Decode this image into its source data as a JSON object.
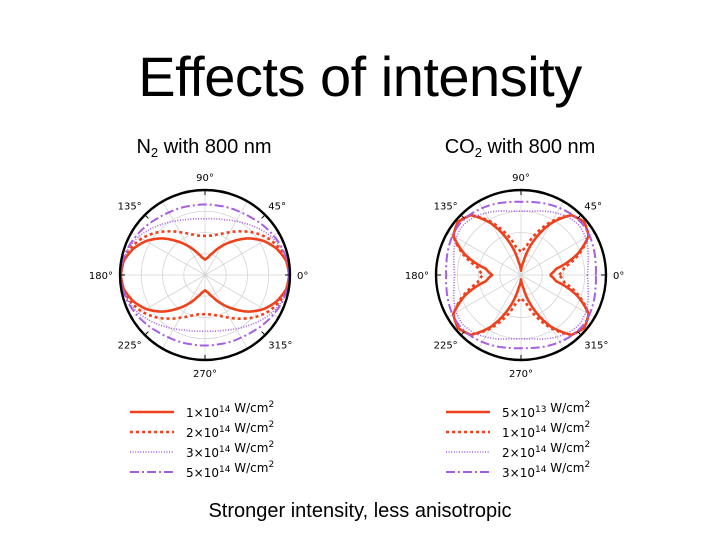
{
  "slide": {
    "title": "Effects of intensity",
    "footer": "Stronger intensity, less anisotropic"
  },
  "chart_data": [
    {
      "type": "polar-line",
      "title": {
        "prefix": "N",
        "subscript": "2",
        "suffix": " with 800 nm"
      },
      "angle_labels": [
        "0°",
        "45°",
        "90°",
        "135°",
        "180°",
        "225°",
        "270°",
        "315°"
      ],
      "angle_values_deg": [
        0,
        45,
        90,
        135,
        180,
        225,
        270,
        315
      ],
      "r_max": 1.0,
      "grid": true,
      "legend_position": "bottom",
      "series": [
        {
          "name": "1×10^14 W/cm^2",
          "label_base": "1×10",
          "label_exp": "14",
          "label_unit": " W/cm",
          "label_unit_exp": "2",
          "style": "solid",
          "color": "#f0411d",
          "theta_deg": [
            0,
            10,
            20,
            30,
            40,
            50,
            60,
            70,
            80,
            90
          ],
          "r": [
            0.99,
            0.97,
            0.9,
            0.8,
            0.67,
            0.52,
            0.39,
            0.28,
            0.21,
            0.18
          ]
        },
        {
          "name": "2×10^14 W/cm^2",
          "label_base": "2×10",
          "label_exp": "14",
          "label_unit": " W/cm",
          "label_unit_exp": "2",
          "style": "dotted",
          "color": "#f0411d",
          "theta_deg": [
            0,
            10,
            20,
            30,
            40,
            50,
            60,
            70,
            80,
            90
          ],
          "r": [
            0.99,
            0.98,
            0.93,
            0.86,
            0.77,
            0.67,
            0.58,
            0.51,
            0.47,
            0.46
          ]
        },
        {
          "name": "3×10^14 W/cm^2",
          "label_base": "3×10",
          "label_exp": "14",
          "label_unit": " W/cm",
          "label_unit_exp": "2",
          "style": "fine-dotted",
          "color": "#a65ee3",
          "theta_deg": [
            0,
            10,
            20,
            30,
            40,
            50,
            60,
            70,
            80,
            90
          ],
          "r": [
            0.99,
            0.98,
            0.95,
            0.9,
            0.84,
            0.78,
            0.73,
            0.69,
            0.67,
            0.66
          ]
        },
        {
          "name": "5×10^14 W/cm^2",
          "label_base": "5×10",
          "label_exp": "14",
          "label_unit": " W/cm",
          "label_unit_exp": "2",
          "style": "dash-dot",
          "color": "#a65ee3",
          "theta_deg": [
            0,
            10,
            20,
            30,
            40,
            50,
            60,
            70,
            80,
            90
          ],
          "r": [
            0.99,
            0.98,
            0.96,
            0.93,
            0.9,
            0.87,
            0.85,
            0.84,
            0.83,
            0.83
          ]
        }
      ]
    },
    {
      "type": "polar-line",
      "title": {
        "prefix": "CO",
        "subscript": "2",
        "suffix": " with 800 nm"
      },
      "angle_labels": [
        "0°",
        "45°",
        "90°",
        "135°",
        "180°",
        "225°",
        "270°",
        "315°"
      ],
      "angle_values_deg": [
        0,
        45,
        90,
        135,
        180,
        225,
        270,
        315
      ],
      "r_max": 1.0,
      "grid": true,
      "legend_position": "bottom",
      "series": [
        {
          "name": "5×10^13 W/cm^2",
          "label_base": "5×10",
          "label_exp": "13",
          "label_unit": " W/cm",
          "label_unit_exp": "2",
          "style": "solid",
          "color": "#f0411d",
          "theta_deg": [
            0,
            10,
            20,
            30,
            40,
            50,
            60,
            70,
            80,
            90
          ],
          "r": [
            0.34,
            0.42,
            0.7,
            0.92,
            0.97,
            0.92,
            0.7,
            0.42,
            0.15,
            0.05
          ]
        },
        {
          "name": "1×10^14 W/cm^2",
          "label_base": "1×10",
          "label_exp": "14",
          "label_unit": " W/cm",
          "label_unit_exp": "2",
          "style": "dotted",
          "color": "#f0411d",
          "theta_deg": [
            0,
            10,
            20,
            30,
            40,
            50,
            60,
            70,
            80,
            90
          ],
          "r": [
            0.45,
            0.52,
            0.73,
            0.92,
            0.97,
            0.92,
            0.73,
            0.52,
            0.33,
            0.27
          ]
        },
        {
          "name": "2×10^14 W/cm^2",
          "label_base": "2×10",
          "label_exp": "14",
          "label_unit": " W/cm",
          "label_unit_exp": "2",
          "style": "fine-dotted",
          "color": "#a65ee3",
          "theta_deg": [
            0,
            10,
            20,
            30,
            40,
            50,
            60,
            70,
            80,
            90
          ],
          "r": [
            0.78,
            0.8,
            0.84,
            0.88,
            0.9,
            0.88,
            0.84,
            0.8,
            0.76,
            0.75
          ]
        },
        {
          "name": "3×10^14 W/cm^2",
          "label_base": "3×10",
          "label_exp": "14",
          "label_unit": " W/cm",
          "label_unit_exp": "2",
          "style": "dash-dot",
          "color": "#a65ee3",
          "theta_deg": [
            0,
            10,
            20,
            30,
            40,
            50,
            60,
            70,
            80,
            90
          ],
          "r": [
            0.88,
            0.89,
            0.91,
            0.93,
            0.94,
            0.93,
            0.91,
            0.89,
            0.87,
            0.86
          ]
        }
      ]
    }
  ]
}
